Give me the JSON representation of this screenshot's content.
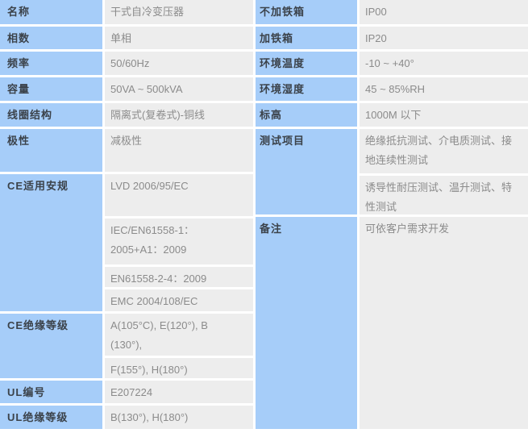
{
  "colors": {
    "label_bg": "#a6cdf9",
    "value_bg": "#ededed",
    "label_text": "#3b424a",
    "value_text": "#8b8b8b",
    "divider": "#ffffff"
  },
  "left": {
    "product_name": {
      "label": "名称",
      "value": "干式自冷变压器"
    },
    "phase_count": {
      "label": "相数",
      "value": "单相"
    },
    "frequency": {
      "label": "频率",
      "value": "50/60Hz"
    },
    "capacity": {
      "label": "容量",
      "value": "50VA ~ 500kVA"
    },
    "coil_structure": {
      "label": "线圈结构",
      "value": "隔离式(复卷式)-铜线"
    },
    "polarity": {
      "label": "极性",
      "value": "减极性"
    },
    "ce_safety": {
      "label": "CE适用安规",
      "values": [
        "LVD 2006/95/EC",
        "IEC/EN61558-1：\n2005+A1：2009",
        "EN61558-2-4：2009",
        "EMC 2004/108/EC"
      ]
    },
    "ce_insulation": {
      "label": "CE绝缘等级",
      "values": [
        "A(105°C), E(120°), B\n(130°),",
        "F(155°), H(180°)"
      ]
    },
    "ul_number": {
      "label": "UL编号",
      "value": "E207224"
    },
    "ul_insulation": {
      "label": "UL绝缘等级",
      "value": "B(130°), H(180°)"
    }
  },
  "right": {
    "ip_without_case": {
      "label": "不加铁箱",
      "value": "IP00"
    },
    "ip_with_case": {
      "label": "加铁箱",
      "value": "IP20"
    },
    "ambient_temp": {
      "label": "环境温度",
      "value": "-10 ~ +40°"
    },
    "ambient_humidity": {
      "label": "环境湿度",
      "value": "45 ~ 85%RH"
    },
    "altitude": {
      "label": "标高",
      "value": "1000M 以下"
    },
    "test_items": {
      "label": "测试项目",
      "values": [
        "绝缘抵抗测试、介电质测试、接\n地连续性测试",
        "诱导性耐压测试、温升测试、特\n性测试"
      ]
    },
    "remarks": {
      "label": "备注",
      "value": "可依客户需求开发"
    }
  }
}
